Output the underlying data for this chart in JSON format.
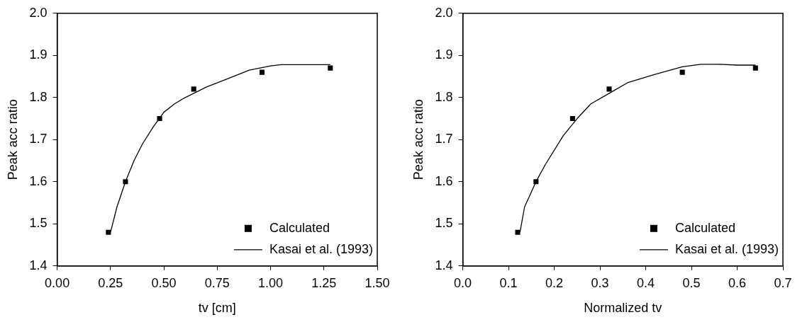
{
  "chart_data": [
    {
      "type": "scatter",
      "xlabel": "tv [cm]",
      "ylabel": "Peak acc ratio",
      "xlim": [
        0,
        1.5
      ],
      "xticks": [
        {
          "value": 0,
          "label": "0.00"
        },
        0.25,
        {
          "value": 0.5,
          "label": "0.50"
        },
        0.75,
        {
          "value": 1,
          "label": "1.00"
        },
        1.25,
        {
          "value": 1.5,
          "label": "1.50"
        }
      ],
      "ylim": [
        1.4,
        2.0
      ],
      "yticks": [
        1.4,
        1.5,
        1.6,
        1.7,
        1.8,
        1.9,
        {
          "value": 2,
          "label": "2.0"
        }
      ],
      "grid": false,
      "legend": "bottom right",
      "series": [
        {
          "name": "Calculated",
          "marker": "square",
          "color": "#000000",
          "x": [
            0.24,
            0.32,
            0.48,
            0.64,
            0.96,
            1.28
          ],
          "values": [
            1.48,
            1.6,
            1.75,
            1.82,
            1.86,
            1.87
          ]
        },
        {
          "name": "Kasai et al. (1993)",
          "type": "line",
          "marker": "none",
          "line_style": "solid",
          "color": "#000000",
          "x": [
            0.25,
            0.28,
            0.32,
            0.36,
            0.4,
            0.45,
            0.5,
            0.55,
            0.6,
            0.7,
            0.8,
            0.9,
            1.0,
            1.05,
            1.28
          ],
          "values": [
            1.48,
            1.54,
            1.6,
            1.65,
            1.69,
            1.73,
            1.765,
            1.785,
            1.8,
            1.825,
            1.845,
            1.865,
            1.875,
            1.878,
            1.878
          ]
        }
      ]
    },
    {
      "type": "scatter",
      "xlabel": "Normalized tv",
      "ylabel": "Peak acc ratio",
      "xlim": [
        0,
        0.7
      ],
      "xticks": [
        {
          "value": 0,
          "label": "0.0"
        },
        0.1,
        0.2,
        0.3,
        0.4,
        0.5,
        0.6,
        0.7
      ],
      "ylim": [
        1.4,
        2.0
      ],
      "yticks": [
        1.4,
        1.5,
        1.6,
        1.7,
        1.8,
        1.9,
        {
          "value": 2,
          "label": "2.0"
        }
      ],
      "grid": false,
      "legend": "bottom right",
      "series": [
        {
          "name": "Calculated",
          "marker": "square",
          "color": "#000000",
          "x": [
            0.12,
            0.16,
            0.24,
            0.32,
            0.48,
            0.64
          ],
          "values": [
            1.48,
            1.6,
            1.75,
            1.82,
            1.86,
            1.87
          ]
        },
        {
          "name": "Kasai et al. (1993)",
          "type": "line",
          "marker": "none",
          "line_style": "solid",
          "color": "#000000",
          "x": [
            0.125,
            0.135,
            0.16,
            0.18,
            0.22,
            0.25,
            0.28,
            0.32,
            0.36,
            0.42,
            0.48,
            0.52,
            0.56,
            0.6,
            0.64
          ],
          "values": [
            1.48,
            1.54,
            1.6,
            1.64,
            1.71,
            1.75,
            1.785,
            1.81,
            1.835,
            1.855,
            1.873,
            1.879,
            1.879,
            1.877,
            1.877
          ]
        }
      ]
    }
  ]
}
